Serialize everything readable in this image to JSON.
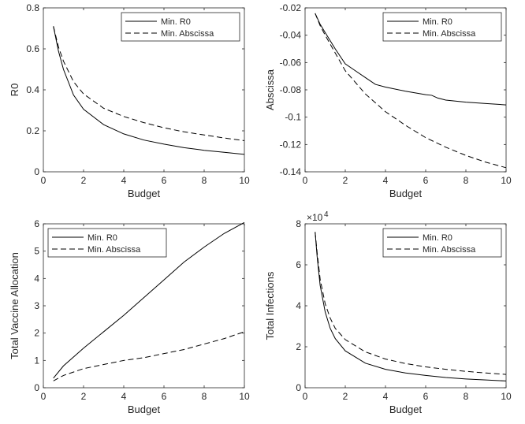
{
  "chart_data": [
    {
      "type": "line",
      "xlabel": "Budget",
      "ylabel": "R0",
      "xlim": [
        0,
        10
      ],
      "ylim": [
        0,
        0.8
      ],
      "xticks": [
        "0",
        "2",
        "4",
        "6",
        "8",
        "10"
      ],
      "yticks": [
        "0",
        "0.2",
        "0.4",
        "0.6",
        "0.8"
      ],
      "legend": "top-right",
      "series": [
        {
          "name": "Min. R0",
          "style": "solid",
          "x": [
            0.5,
            0.75,
            1,
            1.5,
            2,
            3,
            4,
            5,
            6,
            7,
            8,
            9,
            10
          ],
          "y": [
            0.71,
            0.59,
            0.5,
            0.375,
            0.305,
            0.23,
            0.185,
            0.155,
            0.135,
            0.118,
            0.105,
            0.095,
            0.085
          ]
        },
        {
          "name": "Min. Abscissa",
          "style": "dashed",
          "x": [
            0.5,
            0.75,
            1,
            1.5,
            2,
            3,
            4,
            5,
            6,
            7,
            8,
            9,
            10
          ],
          "y": [
            0.71,
            0.61,
            0.54,
            0.44,
            0.38,
            0.31,
            0.27,
            0.24,
            0.215,
            0.195,
            0.18,
            0.165,
            0.152
          ]
        }
      ]
    },
    {
      "type": "line",
      "xlabel": "Budget",
      "ylabel": "Abscissa",
      "xlim": [
        0,
        10
      ],
      "ylim": [
        -0.14,
        -0.02
      ],
      "xticks": [
        "0",
        "2",
        "4",
        "6",
        "8",
        "10"
      ],
      "yticks": [
        "-0.14",
        "-0.12",
        "-0.1",
        "-0.08",
        "-0.06",
        "-0.04",
        "-0.02"
      ],
      "legend": "top-right",
      "series": [
        {
          "name": "Min. R0",
          "style": "solid",
          "x": [
            0.5,
            0.75,
            1,
            1.5,
            2,
            2.5,
            3,
            3.5,
            4,
            5,
            6,
            6.3,
            6.6,
            7,
            8,
            9,
            10
          ],
          "y": [
            -0.024,
            -0.032,
            -0.038,
            -0.05,
            -0.061,
            -0.066,
            -0.071,
            -0.076,
            -0.078,
            -0.081,
            -0.0835,
            -0.084,
            -0.086,
            -0.0875,
            -0.089,
            -0.09,
            -0.091
          ]
        },
        {
          "name": "Min. Abscissa",
          "style": "dashed",
          "x": [
            0.5,
            0.75,
            1,
            1.5,
            2,
            3,
            4,
            5,
            6,
            7,
            8,
            9,
            10
          ],
          "y": [
            -0.024,
            -0.033,
            -0.04,
            -0.053,
            -0.066,
            -0.083,
            -0.096,
            -0.106,
            -0.115,
            -0.122,
            -0.128,
            -0.133,
            -0.137
          ]
        }
      ]
    },
    {
      "type": "line",
      "xlabel": "Budget",
      "ylabel": "Total Vaccine Allocation",
      "xlim": [
        0,
        10
      ],
      "ylim": [
        0,
        6
      ],
      "xticks": [
        "0",
        "2",
        "4",
        "6",
        "8",
        "10"
      ],
      "yticks": [
        "0",
        "1",
        "2",
        "3",
        "4",
        "5",
        "6"
      ],
      "legend": "top-left",
      "series": [
        {
          "name": "Min. R0",
          "style": "solid",
          "x": [
            0.5,
            1,
            2,
            3,
            4,
            5,
            6,
            7,
            8,
            9,
            10
          ],
          "y": [
            0.35,
            0.8,
            1.45,
            2.05,
            2.65,
            3.3,
            3.95,
            4.6,
            5.15,
            5.65,
            6.05
          ]
        },
        {
          "name": "Min. Abscissa",
          "style": "dashed",
          "x": [
            0.5,
            1,
            2,
            3,
            4,
            5,
            6,
            7,
            8,
            9,
            10
          ],
          "y": [
            0.25,
            0.45,
            0.7,
            0.85,
            1.0,
            1.1,
            1.25,
            1.4,
            1.6,
            1.8,
            2.05
          ]
        }
      ]
    },
    {
      "type": "line",
      "xlabel": "Budget",
      "ylabel": "Total Infections",
      "xlim": [
        0,
        10
      ],
      "ylim": [
        0,
        8
      ],
      "y_multiplier_base": "×10",
      "y_multiplier_exp": "4",
      "xticks": [
        "0",
        "2",
        "4",
        "6",
        "8",
        "10"
      ],
      "yticks": [
        "0",
        "2",
        "4",
        "6",
        "8"
      ],
      "legend": "top-right",
      "series": [
        {
          "name": "Min. R0",
          "style": "solid",
          "x": [
            0.5,
            0.6,
            0.75,
            1,
            1.25,
            1.5,
            2,
            3,
            4,
            5,
            6,
            7,
            8,
            9,
            10
          ],
          "y": [
            7.6,
            6.4,
            5.0,
            3.7,
            2.9,
            2.4,
            1.8,
            1.2,
            0.9,
            0.72,
            0.6,
            0.5,
            0.43,
            0.38,
            0.33
          ]
        },
        {
          "name": "Min. Abscissa",
          "style": "dashed",
          "x": [
            0.5,
            0.6,
            0.75,
            1,
            1.25,
            1.5,
            2,
            3,
            4,
            5,
            6,
            7,
            8,
            9,
            10
          ],
          "y": [
            7.6,
            6.6,
            5.3,
            4.1,
            3.4,
            2.9,
            2.35,
            1.75,
            1.4,
            1.18,
            1.02,
            0.9,
            0.8,
            0.72,
            0.65
          ]
        }
      ]
    }
  ]
}
